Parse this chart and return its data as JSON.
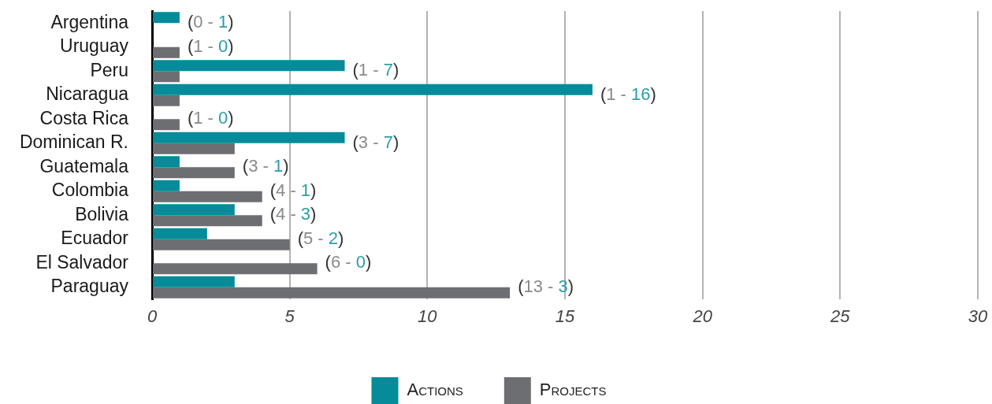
{
  "chart_data": {
    "type": "bar",
    "orientation": "horizontal",
    "categories": [
      "Argentina",
      "Uruguay",
      "Peru",
      "Nicaragua",
      "Costa Rica",
      "Dominican R.",
      "Guatemala",
      "Colombia",
      "Bolivia",
      "Ecuador",
      "El Salvador",
      "Paraguay"
    ],
    "series": [
      {
        "name": "Actions",
        "color": "#058b9a",
        "values": [
          1,
          0,
          7,
          16,
          0,
          7,
          1,
          1,
          3,
          2,
          0,
          3
        ]
      },
      {
        "name": "Projects",
        "color": "#6d6e71",
        "values": [
          0,
          1,
          1,
          1,
          1,
          3,
          3,
          4,
          4,
          5,
          6,
          13
        ]
      }
    ],
    "xlim": [
      0,
      30
    ],
    "xticks": [
      0,
      5,
      10,
      15,
      20,
      25,
      30
    ],
    "grid": "x",
    "legend": "bottom",
    "annotations": [
      {
        "text": "(0 - 1)",
        "x": 1,
        "y": "Argentina"
      },
      {
        "text": "(1 - 0)",
        "x": 1,
        "y": "Uruguay"
      },
      {
        "text": "(1 - 7)",
        "x": 7,
        "y": "Peru"
      },
      {
        "text": "(1 - 16)",
        "x": 16,
        "y": "Nicaragua"
      },
      {
        "text": "(1 - 0)",
        "x": 1,
        "y": "Costa Rica"
      },
      {
        "text": "(3 - 7)",
        "x": 7,
        "y": "Dominican R."
      },
      {
        "text": "(3 - 1)",
        "x": 3,
        "y": "Guatemala"
      },
      {
        "text": "(4 - 1)",
        "x": 4,
        "y": "Colombia"
      },
      {
        "text": "(4 - 3)",
        "x": 4,
        "y": "Bolivia"
      },
      {
        "text": "(5 - 2)",
        "x": 5,
        "y": "Ecuador"
      },
      {
        "text": "(6 - 0)",
        "x": 6,
        "y": "El Salvador"
      },
      {
        "text": "(13 - 3)",
        "x": 13,
        "y": "Paraguay"
      }
    ]
  }
}
